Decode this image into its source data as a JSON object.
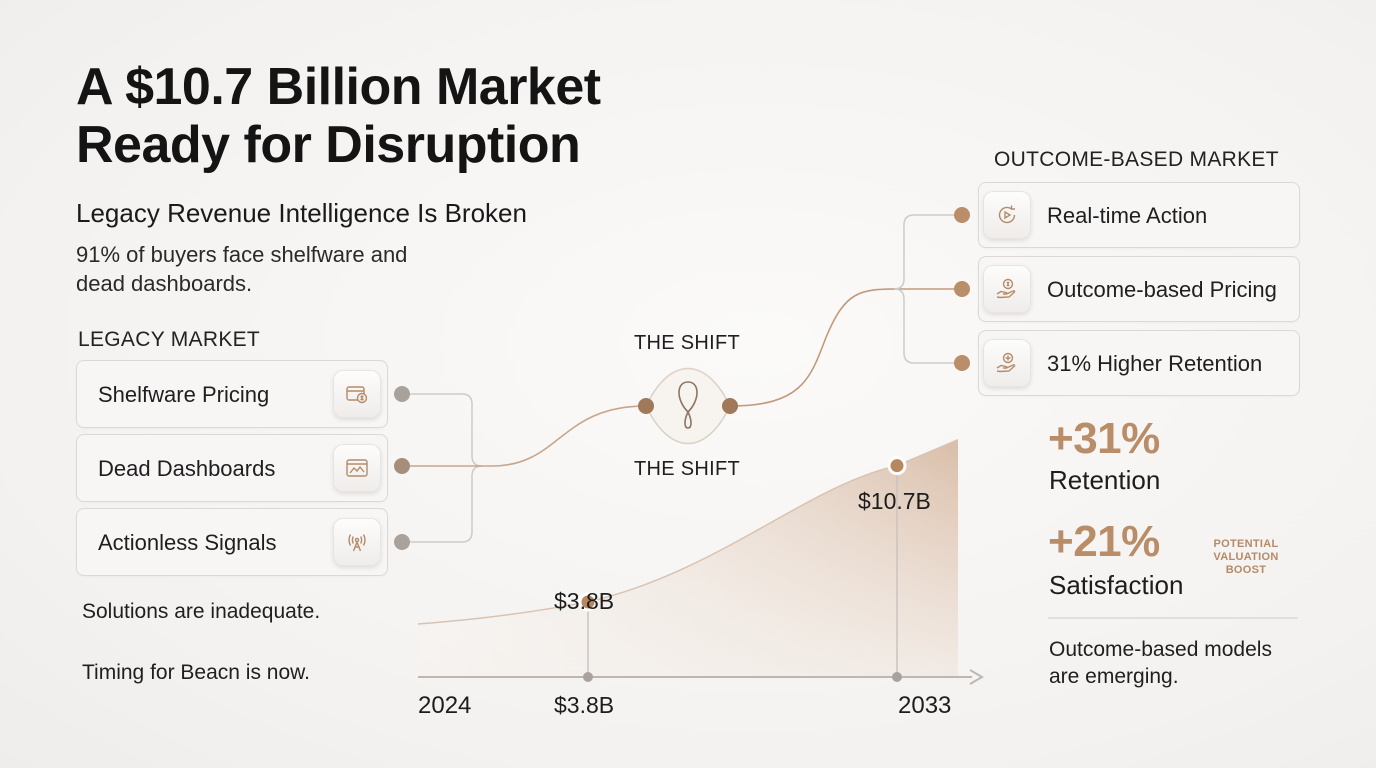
{
  "title_line1": "A $10.7 Billion Market",
  "title_line2": "Ready for Disruption",
  "subtitle": "Legacy Revenue Intelligence Is Broken",
  "description_line1": "91% of buyers face shelfware and",
  "description_line2": "dead dashboards.",
  "legacy": {
    "label": "LEGACY MARKET",
    "items": [
      {
        "label": "Shelfware Pricing",
        "icon": "wallet-dollar-icon"
      },
      {
        "label": "Dead Dashboards",
        "icon": "chart-window-icon"
      },
      {
        "label": "Actionless Signals",
        "icon": "signal-antenna-icon"
      }
    ],
    "note1": "Solutions are inadequate.",
    "note2": "Timing for Beacn is now."
  },
  "shift": {
    "label_top": "THE SHIFT",
    "label_bottom": "THE SHIFT",
    "icon": "loop-icon"
  },
  "outcome": {
    "label": "OUTCOME-BASED MARKET",
    "items": [
      {
        "label": "Real-time Action",
        "icon": "play-refresh-icon"
      },
      {
        "label": "Outcome-based Pricing",
        "icon": "hand-coin-icon"
      },
      {
        "label": "31% Higher Retention",
        "icon": "hand-plus-icon"
      }
    ]
  },
  "stats": {
    "retention_value": "+31%",
    "retention_label": "Retention",
    "satisfaction_value": "+21%",
    "satisfaction_label": "Satisfaction",
    "boost_line1": "POTENTIAL",
    "boost_line2": "VALUATION",
    "boost_line3": "BOOST",
    "footer_line1": "Outcome-based models",
    "footer_line2": "are emerging."
  },
  "colors": {
    "accent": "#b88d68",
    "node": "#b7875f",
    "node_gray": "#a8a09a",
    "line": "#c9c4bf"
  },
  "chart_data": {
    "type": "area",
    "x": [
      "2024",
      "2033"
    ],
    "values": [
      3.8,
      10.7
    ],
    "point_labels": [
      "$3.8B",
      "$10.7B"
    ],
    "axis_value_label": "$3.8B",
    "x_start_label": "2024",
    "x_end_label": "2033"
  }
}
